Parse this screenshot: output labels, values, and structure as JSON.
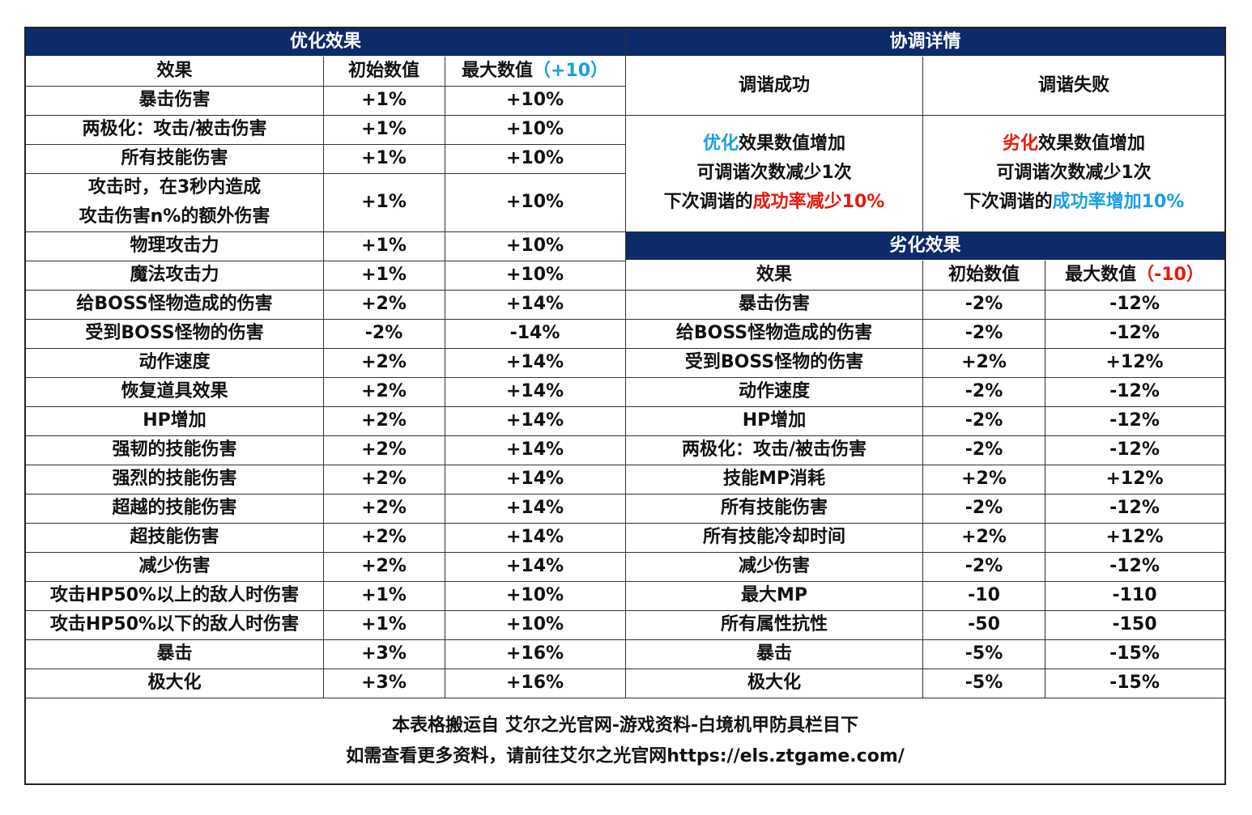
{
  "optimize": {
    "title": "优化效果",
    "headers": {
      "effect": "效果",
      "initial": "初始数值",
      "max": "最大数值",
      "max_suffix": "（+10）"
    },
    "rows": [
      {
        "effect": "暴击伤害",
        "initial": "+1%",
        "max": "+10%"
      },
      {
        "effect": "两极化：攻击/被击伤害",
        "initial": "+1%",
        "max": "+10%"
      },
      {
        "effect": "所有技能伤害",
        "initial": "+1%",
        "max": "+10%"
      },
      {
        "effect": "攻击时，在3秒内造成",
        "effect2": "攻击伤害n%的额外伤害",
        "initial": "+1%",
        "max": "+10%"
      },
      {
        "effect": "物理攻击力",
        "initial": "+1%",
        "max": "+10%"
      },
      {
        "effect": "魔法攻击力",
        "initial": "+1%",
        "max": "+10%"
      },
      {
        "effect": "给BOSS怪物造成的伤害",
        "initial": "+2%",
        "max": "+14%"
      },
      {
        "effect": "受到BOSS怪物的伤害",
        "initial": "-2%",
        "max": "-14%"
      },
      {
        "effect": "动作速度",
        "initial": "+2%",
        "max": "+14%"
      },
      {
        "effect": "恢复道具效果",
        "initial": "+2%",
        "max": "+14%"
      },
      {
        "effect": "HP增加",
        "initial": "+2%",
        "max": "+14%"
      },
      {
        "effect": "强韧的技能伤害",
        "initial": "+2%",
        "max": "+14%"
      },
      {
        "effect": "强烈的技能伤害",
        "initial": "+2%",
        "max": "+14%"
      },
      {
        "effect": "超越的技能伤害",
        "initial": "+2%",
        "max": "+14%"
      },
      {
        "effect": "超技能伤害",
        "initial": "+2%",
        "max": "+14%"
      },
      {
        "effect": "减少伤害",
        "initial": "+2%",
        "max": "+14%"
      },
      {
        "effect": "攻击HP50%以上的敌人时伤害",
        "initial": "+1%",
        "max": "+10%"
      },
      {
        "effect": "攻击HP50%以下的敌人时伤害",
        "initial": "+1%",
        "max": "+10%"
      },
      {
        "effect": "暴击",
        "initial": "+3%",
        "max": "+16%"
      },
      {
        "effect": "极大化",
        "initial": "+3%",
        "max": "+16%"
      }
    ]
  },
  "tuning": {
    "title": "协调详情",
    "success": {
      "label": "调谐成功",
      "l1_hl": "优化",
      "l1_rest": "效果数值增加",
      "l2": "可调谐次数减少1次",
      "l3_pre": "下次调谐的",
      "l3_hl": "成功率减少10%"
    },
    "fail": {
      "label": "调谐失败",
      "l1_hl": "劣化",
      "l1_rest": "效果数值增加",
      "l2": "可调谐次数减少1次",
      "l3_pre": "下次调谐的",
      "l3_hl": "成功率增加10%"
    }
  },
  "degrade": {
    "title": "劣化效果",
    "headers": {
      "effect": "效果",
      "initial": "初始数值",
      "max": "最大数值",
      "max_suffix": "（-10）"
    },
    "rows": [
      {
        "effect": "暴击伤害",
        "initial": "-2%",
        "max": "-12%"
      },
      {
        "effect": "给BOSS怪物造成的伤害",
        "initial": "-2%",
        "max": "-12%"
      },
      {
        "effect": "受到BOSS怪物的伤害",
        "initial": "+2%",
        "max": "+12%"
      },
      {
        "effect": "动作速度",
        "initial": "-2%",
        "max": "-12%"
      },
      {
        "effect": "HP增加",
        "initial": "-2%",
        "max": "-12%"
      },
      {
        "effect": "两极化：攻击/被击伤害",
        "initial": "-2%",
        "max": "-12%"
      },
      {
        "effect": "技能MP消耗",
        "initial": "+2%",
        "max": "+12%"
      },
      {
        "effect": "所有技能伤害",
        "initial": "-2%",
        "max": "-12%"
      },
      {
        "effect": "所有技能冷却时间",
        "initial": "+2%",
        "max": "+12%"
      },
      {
        "effect": "减少伤害",
        "initial": "-2%",
        "max": "-12%"
      },
      {
        "effect": "最大MP",
        "initial": "-10",
        "max": "-110"
      },
      {
        "effect": "所有属性抗性",
        "initial": "-50",
        "max": "-150"
      },
      {
        "effect": "暴击",
        "initial": "-5%",
        "max": "-15%"
      },
      {
        "effect": "极大化",
        "initial": "-5%",
        "max": "-15%"
      }
    ]
  },
  "footer": {
    "line1": "本表格搬运自 艾尔之光官网-游戏资料-白境机甲防具栏目下",
    "line2": "如需查看更多资料，请前往艾尔之光官网https://els.ztgame.com/"
  },
  "colors": {
    "header_bg": "#0d2a6b",
    "highlight_blue": "#1a9ee6",
    "highlight_red": "#e8180c"
  }
}
